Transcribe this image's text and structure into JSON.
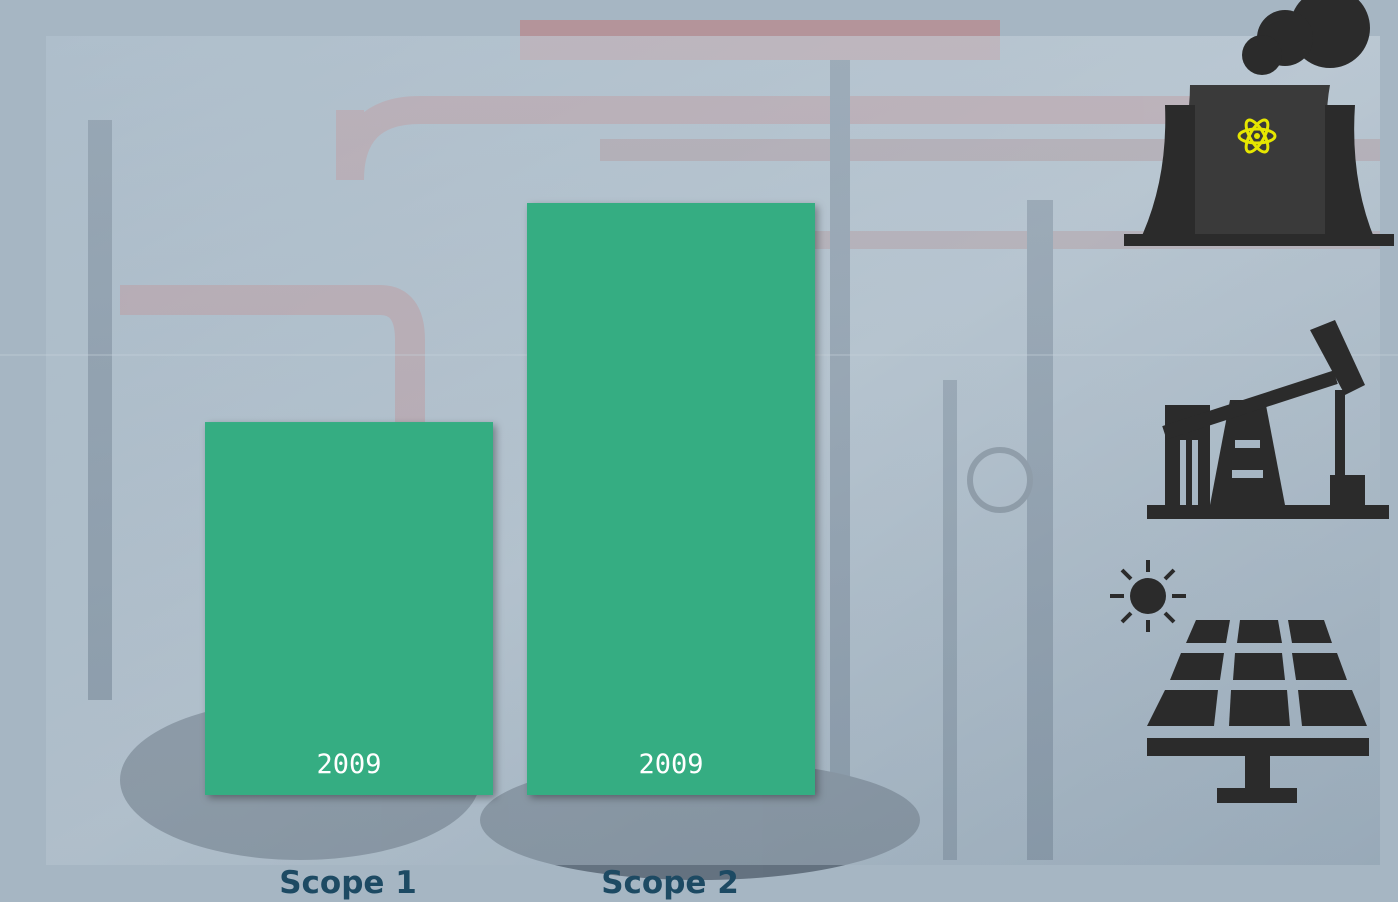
{
  "chart_data": {
    "type": "bar",
    "categories": [
      "Scope 1",
      "Scope 2"
    ],
    "values": [
      63,
      100
    ],
    "bar_labels": [
      "2009",
      "2009"
    ],
    "color": "#35ad82",
    "ylim": [
      0,
      100
    ]
  }
}
